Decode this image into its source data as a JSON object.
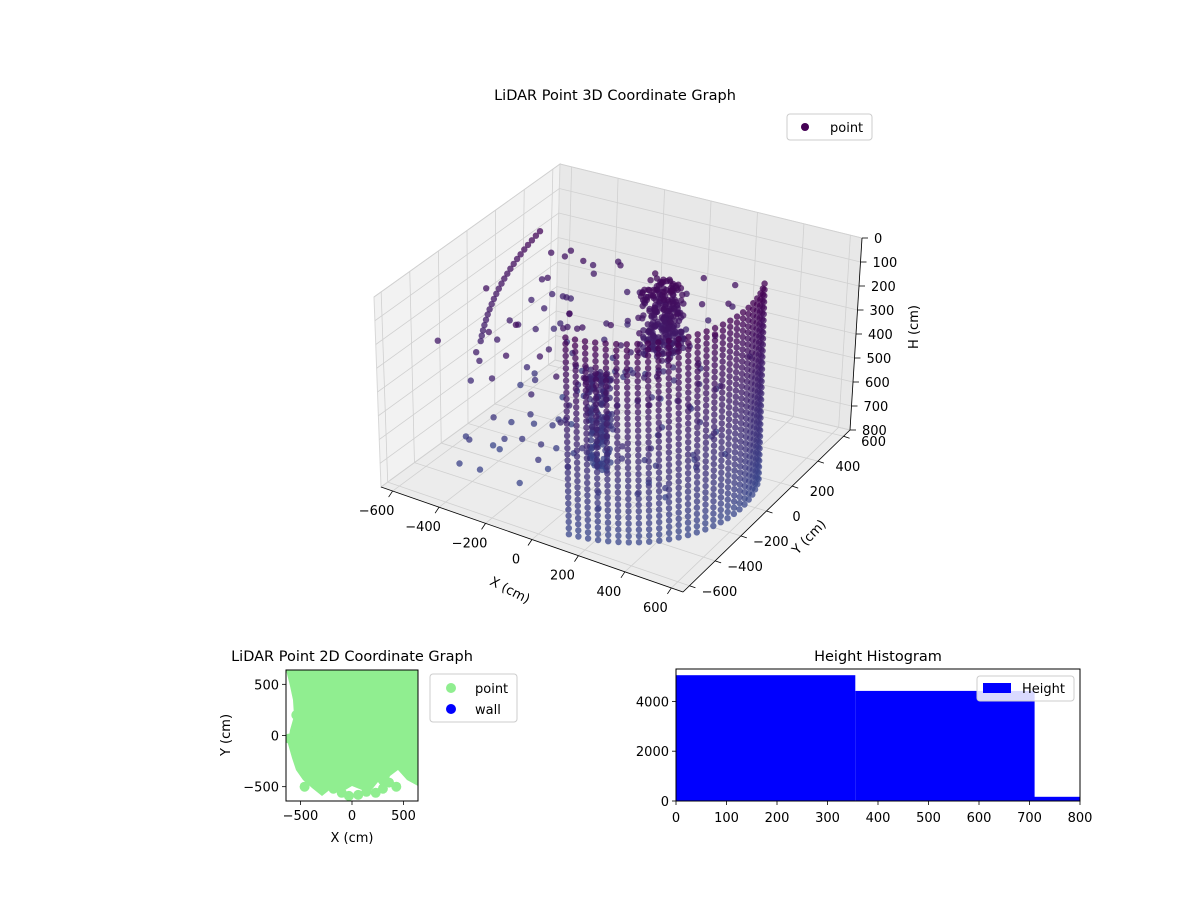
{
  "chart_data": [
    {
      "type": "scatter",
      "projection": "3d",
      "title": "LiDAR Point 3D Coordinate Graph",
      "xlabel": "X (cm)",
      "ylabel": "Y (cm)",
      "zlabel": "H (cm)",
      "xticks": [
        -600,
        -400,
        -200,
        0,
        200,
        400,
        600
      ],
      "yticks": [
        -600,
        -400,
        -200,
        0,
        200,
        400,
        600
      ],
      "zticks": [
        0,
        100,
        200,
        300,
        400,
        500,
        600,
        700,
        800
      ],
      "xlim": [
        -650,
        650
      ],
      "ylim": [
        -650,
        650
      ],
      "zlim": [
        800,
        0
      ],
      "z_inverted": true,
      "legend": [
        "point"
      ],
      "legend_position": "upper-right",
      "colormap": "viridis",
      "grid": true,
      "series": [
        {
          "name": "point",
          "color": "#440154",
          "point_groups": [
            {
              "shape": "cylinder-wall",
              "radius": 560,
              "angle_from_deg": -80,
              "angle_to_deg": 20,
              "h_from": 0,
              "h_to": 800
            },
            {
              "shape": "arc",
              "radius": 520,
              "angle_from_deg": 155,
              "angle_to_deg": 200,
              "h_from": 50,
              "h_to": 350
            },
            {
              "shape": "cluster",
              "x": 100,
              "y": 150,
              "h_from": 80,
              "h_to": 500
            },
            {
              "shape": "column",
              "x": -50,
              "y": -50,
              "h_from": 400,
              "h_to": 800
            },
            {
              "shape": "scatter-cloud",
              "x_range": [
                -550,
                350
              ],
              "y_range": [
                -400,
                500
              ],
              "h_range": [
                150,
                800
              ]
            }
          ]
        }
      ]
    },
    {
      "type": "scatter",
      "title": "LiDAR Point 2D Coordinate Graph",
      "xlabel": "X (cm)",
      "ylabel": "Y (cm)",
      "xticks": [
        -500,
        0,
        500
      ],
      "yticks": [
        -500,
        0,
        500
      ],
      "xlim": [
        -640,
        640
      ],
      "ylim": [
        -640,
        640
      ],
      "legend_position": "outside-right",
      "series": [
        {
          "name": "point",
          "color": "#90ee90"
        },
        {
          "name": "wall",
          "color": "#0000ff"
        }
      ]
    },
    {
      "type": "bar",
      "title": "Height Histogram",
      "xlabel": "",
      "ylabel": "",
      "bins": [
        {
          "from": 0,
          "to": 355,
          "count": 5050
        },
        {
          "from": 355,
          "to": 710,
          "count": 4420
        },
        {
          "from": 710,
          "to": 800,
          "count": 170
        }
      ],
      "xticks": [
        0,
        100,
        200,
        300,
        400,
        500,
        600,
        700,
        800
      ],
      "yticks": [
        0,
        2000,
        4000
      ],
      "xlim": [
        0,
        800
      ],
      "ylim": [
        0,
        5300
      ],
      "legend_position": "upper-right",
      "series": [
        {
          "name": "Height",
          "color": "#0000ff"
        }
      ]
    }
  ]
}
